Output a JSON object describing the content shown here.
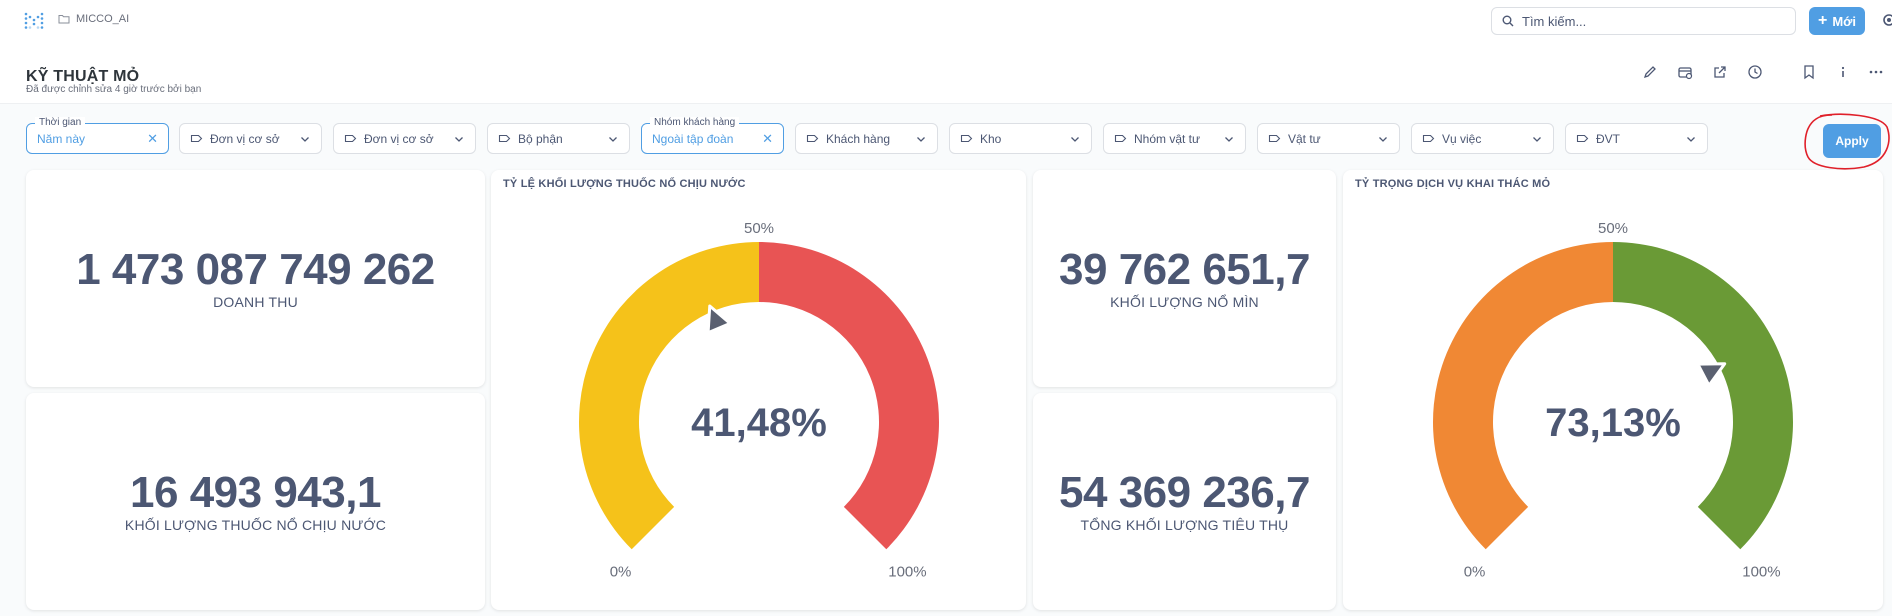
{
  "app": {
    "breadcrumb": "MICCO_AI"
  },
  "topbar": {
    "search_placeholder": "Tìm kiếm...",
    "new_label": "Mới"
  },
  "dashboard": {
    "title": "KỸ THUẬT MỎ",
    "subtitle": "Đã được chỉnh sửa 4 giờ trước bởi bạn"
  },
  "filters": [
    {
      "label": "Thời gian",
      "value": "Năm này",
      "active": true
    },
    {
      "value": "Đơn vị cơ sở"
    },
    {
      "value": "Đơn vị cơ sở"
    },
    {
      "value": "Bộ phận"
    },
    {
      "label": "Nhóm khách hàng",
      "value": "Ngoài tập đoàn",
      "active": true
    },
    {
      "value": "Khách hàng"
    },
    {
      "value": "Kho"
    },
    {
      "value": "Nhóm vật tư"
    },
    {
      "value": "Vật tư"
    },
    {
      "value": "Vụ việc"
    },
    {
      "value": "ĐVT"
    }
  ],
  "apply_label": "Apply",
  "cards": {
    "revenue": {
      "value": "1 473 087 749 262",
      "label": "DOANH THU"
    },
    "waterproof": {
      "value": "16 493 943,1",
      "label": "KHỐI LƯỢNG THUỐC NỔ CHỊU NƯỚC"
    },
    "blast": {
      "value": "39 762 651,7",
      "label": "KHỐI LƯỢNG NỔ MÌN"
    },
    "consumption": {
      "value": "54 369 236,7",
      "label": "TỔNG KHỐI LƯỢNG TIÊU THỤ"
    }
  },
  "gauges": [
    {
      "title": "TỶ LỆ KHỐI LƯỢNG THUỐC NỔ CHỊU NƯỚC",
      "value_text": "41,48%",
      "value": 0.4148,
      "min_label": "0%",
      "mid_label": "50%",
      "max_label": "100%",
      "colors": [
        "#f5c21a",
        "#e85454"
      ]
    },
    {
      "title": "TỶ TRỌNG DỊCH VỤ KHAI THÁC MỎ",
      "value_text": "73,13%",
      "value": 0.7313,
      "min_label": "0%",
      "mid_label": "50%",
      "max_label": "100%",
      "colors": [
        "#f08834",
        "#6a9a36"
      ]
    }
  ],
  "colors": {
    "accent": "#509ee3",
    "text": "#4c5773",
    "annotation": "#e0202a"
  }
}
